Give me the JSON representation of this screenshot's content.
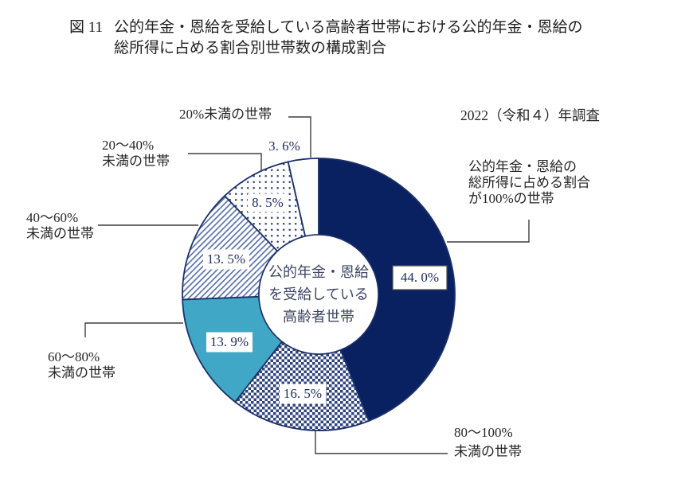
{
  "figure": {
    "number": "図 11",
    "title_lines": [
      "公的年金・恩給を受給している高齢者世帯における公的年金・恩給の",
      "総所得に占める割合別世帯数の構成割合"
    ],
    "survey_note": "2022（令和４）年調査"
  },
  "chart_data": {
    "type": "pie",
    "variant": "donut",
    "title": "公的年金・恩給を受給している高齢者世帯における公的年金・恩給の総所得に占める割合別世帯数の構成割合",
    "survey": "2022（令和４）年調査",
    "unit": "%",
    "direction": "clockwise",
    "start_angle_deg": 0,
    "total": 100.0,
    "center_label_lines": [
      "公的年金・恩給",
      "を受給している",
      "高齢者世帯"
    ],
    "slices": [
      {
        "id": "pension-100",
        "label": "公的年金・恩給の総所得に占める割合が100%の世帯",
        "label_lines": [
          "公的年金・恩給の",
          "総所得に占める割合",
          "が100%の世帯"
        ],
        "value": 44.0,
        "value_text": "44. 0%",
        "fill": "navy"
      },
      {
        "id": "pension-80-100",
        "label": "80～100%未満の世帯",
        "label_lines": [
          "80～100%",
          "未満の世帯"
        ],
        "value": 16.5,
        "value_text": "16. 5%",
        "fill": "checker"
      },
      {
        "id": "pension-60-80",
        "label": "60～80%未満の世帯",
        "label_lines": [
          "60～80%",
          "未満の世帯"
        ],
        "value": 13.9,
        "value_text": "13. 9%",
        "fill": "teal"
      },
      {
        "id": "pension-40-60",
        "label": "40～60%未満の世帯",
        "label_lines": [
          "40～60%",
          "未満の世帯"
        ],
        "value": 13.5,
        "value_text": "13. 5%",
        "fill": "diagonal"
      },
      {
        "id": "pension-20-40",
        "label": "20～40%未満の世帯",
        "label_lines": [
          "20～40%",
          "未満の世帯"
        ],
        "value": 8.5,
        "value_text": "8. 5%",
        "fill": "dots"
      },
      {
        "id": "pension-under-20",
        "label": "20%未満の世帯",
        "label_lines": [
          "20%未満の世帯"
        ],
        "value": 3.6,
        "value_text": "3. 6%",
        "fill": "white"
      }
    ],
    "colors": {
      "navy": "#0A2161",
      "teal": "#41A7C6",
      "outline": "#1B3168",
      "pattern_ink": "#2E4380",
      "hatch_ink": "#5B74AE",
      "connector": "#3F3F3F",
      "label_text": "#262626",
      "center_text": "#3D4663",
      "value_text": "#1E2F63",
      "value_box_border": "#4A4A4A"
    },
    "legend_position": "callout-labels"
  }
}
